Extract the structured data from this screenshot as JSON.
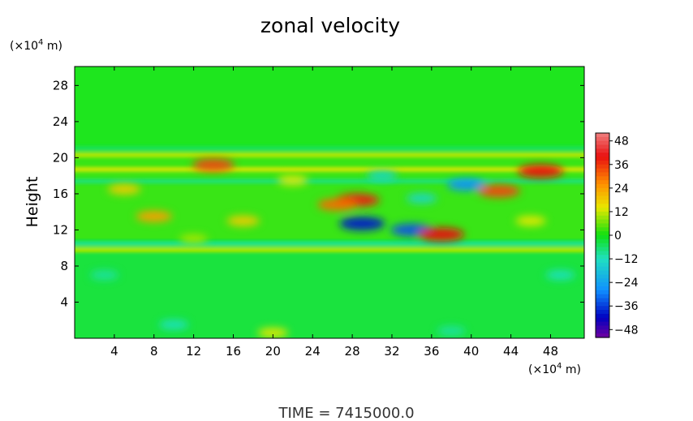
{
  "chart_data": {
    "type": "heatmap",
    "title": "zonal velocity",
    "ylabel": "Height",
    "xunit": "(×10",
    "yunit": "(×10",
    "unit_exp": "4",
    "unit_tail": " m)",
    "xticks": [
      "4",
      "8",
      "12",
      "16",
      "20",
      "24",
      "28",
      "32",
      "36",
      "40",
      "44",
      "48"
    ],
    "yticks": [
      "4",
      "8",
      "12",
      "16",
      "20",
      "24",
      "28"
    ],
    "xlim": [
      0,
      51.4
    ],
    "ylim": [
      0,
      30.1
    ],
    "x_tick_values": [
      4,
      8,
      12,
      16,
      20,
      24,
      28,
      32,
      36,
      40,
      44,
      48
    ],
    "y_tick_values": [
      4,
      8,
      12,
      16,
      20,
      24,
      28
    ],
    "colorbar": {
      "labels": [
        "48",
        "36",
        "24",
        "12",
        "0",
        "−12",
        "−24",
        "−36",
        "−48"
      ],
      "values": [
        48,
        36,
        24,
        12,
        0,
        -12,
        -24,
        -36,
        -48
      ],
      "range": [
        -52,
        52
      ],
      "colors": {
        "max": "#f08080",
        "high": "#e81010",
        "warm": "#ff9000",
        "mid_warm": "#e8e800",
        "zero": "#10e010",
        "mid_cool": "#20e0c0",
        "cool": "#1090ff",
        "low": "#0000c0",
        "min": "#7000a0"
      }
    },
    "features": [
      {
        "x": 14,
        "y": 19.2,
        "value": 34
      },
      {
        "x": 47,
        "y": 18.5,
        "value": 40
      },
      {
        "x": 28.5,
        "y": 15.3,
        "value": 38
      },
      {
        "x": 26.5,
        "y": 14.8,
        "value": 30
      },
      {
        "x": 29,
        "y": 12.7,
        "value": -40
      },
      {
        "x": 34,
        "y": 12.0,
        "value": -34
      },
      {
        "x": 37,
        "y": 11.5,
        "value": 40
      },
      {
        "x": 39.5,
        "y": 17.0,
        "value": -28
      },
      {
        "x": 42.8,
        "y": 16.3,
        "value": 34
      },
      {
        "x": 8,
        "y": 13.5,
        "value": 24
      },
      {
        "x": 17,
        "y": 13.0,
        "value": 18
      },
      {
        "x": 5,
        "y": 16.5,
        "value": 18
      },
      {
        "x": 22,
        "y": 17.5,
        "value": 14
      },
      {
        "x": 46,
        "y": 13.0,
        "value": 14
      },
      {
        "x": 35,
        "y": 15.5,
        "value": -14
      },
      {
        "x": 20,
        "y": 0.6,
        "value": 14
      },
      {
        "x": 10,
        "y": 1.5,
        "value": -12
      },
      {
        "x": 38,
        "y": 0.8,
        "value": -10
      },
      {
        "x": 3,
        "y": 7.0,
        "value": -10
      },
      {
        "x": 49,
        "y": 7.0,
        "value": -12
      },
      {
        "x": 31,
        "y": 18.0,
        "value": -14
      },
      {
        "x": 12,
        "y": 11.0,
        "value": 10
      }
    ],
    "bands": [
      {
        "y": 10.5,
        "value": -10
      },
      {
        "y": 9.8,
        "value": 12
      },
      {
        "y": 20.3,
        "value": 12
      },
      {
        "y": 21.0,
        "value": -6
      },
      {
        "y": 18.7,
        "value": 14
      },
      {
        "y": 17.4,
        "value": -8
      }
    ]
  },
  "footer": {
    "time_label": "TIME  =  7415000.0"
  }
}
